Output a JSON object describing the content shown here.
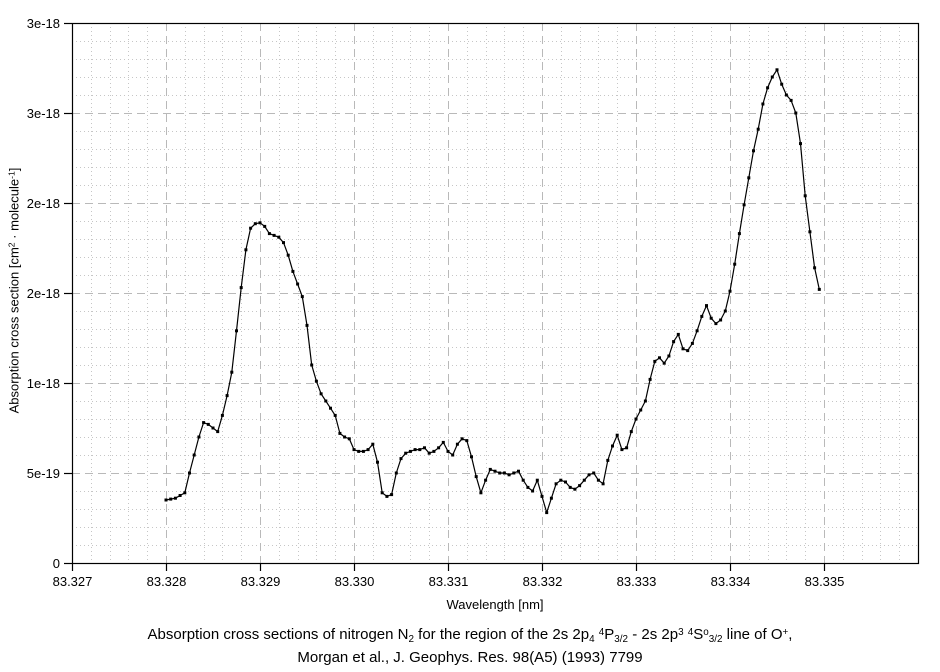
{
  "chart_data": {
    "type": "line",
    "title": "",
    "xlabel": "Wavelength [nm]",
    "ylabel_segments": [
      {
        "t": "Absorption cross section [cm"
      },
      {
        "t": "2",
        "s": "sup"
      },
      {
        "t": " · molecule"
      },
      {
        "t": "-1",
        "s": "sup"
      },
      {
        "t": "]"
      }
    ],
    "xlim": [
      83.327,
      83.336
    ],
    "ylim": [
      0,
      3e-18
    ],
    "x_major_step": 0.001,
    "x_minor_step": 0.0002,
    "y_major_step": 5e-19,
    "y_minor_step": 1e-19,
    "grid": "major-dashed, minor-dotted",
    "legend": "none",
    "marker": "small-black-square",
    "line_color": "#000000",
    "grid_minor_color": "#c6c6c6",
    "grid_major_color": "#b9b9b9",
    "x_ticks": [
      {
        "label": "83.327",
        "value": 83.327
      },
      {
        "label": "83.328",
        "value": 83.328
      },
      {
        "label": "83.329",
        "value": 83.329
      },
      {
        "label": "83.330",
        "value": 83.33
      },
      {
        "label": "83.331",
        "value": 83.331
      },
      {
        "label": "83.332",
        "value": 83.332
      },
      {
        "label": "83.333",
        "value": 83.333
      },
      {
        "label": "83.334",
        "value": 83.334
      },
      {
        "label": "83.335",
        "value": 83.335
      }
    ],
    "y_ticks": [
      {
        "label": "0",
        "value": 0
      },
      {
        "label": "5e-19",
        "value": 5e-19
      },
      {
        "label": "1e-18",
        "value": 1e-18
      },
      {
        "label": "2e-18",
        "value": 1.5e-18
      },
      {
        "label": "2e-18",
        "value": 2e-18
      },
      {
        "label": "3e-18",
        "value": 2.5e-18
      },
      {
        "label": "3e-18",
        "value": 3e-18
      }
    ],
    "series_name": "N2 absorption cross section",
    "x_start": 83.328,
    "x_step": 5e-05,
    "sigma_unit": "1e-19 cm2/molecule",
    "sigma_1e19": [
      3.5,
      3.55,
      3.6,
      3.75,
      3.9,
      5.0,
      6.0,
      7.0,
      7.8,
      7.7,
      7.5,
      7.3,
      8.2,
      9.3,
      10.6,
      12.9,
      15.3,
      17.4,
      18.6,
      18.85,
      18.9,
      18.7,
      18.3,
      18.2,
      18.1,
      17.8,
      17.1,
      16.2,
      15.5,
      14.8,
      13.2,
      11.0,
      10.1,
      9.4,
      9.0,
      8.6,
      8.2,
      7.2,
      7.0,
      6.9,
      6.3,
      6.2,
      6.2,
      6.3,
      6.6,
      5.6,
      3.9,
      3.7,
      3.8,
      5.0,
      5.8,
      6.1,
      6.2,
      6.3,
      6.3,
      6.4,
      6.1,
      6.2,
      6.4,
      6.7,
      6.2,
      6.0,
      6.6,
      6.9,
      6.8,
      5.9,
      4.8,
      3.9,
      4.6,
      5.2,
      5.1,
      5.0,
      5.0,
      4.9,
      5.0,
      5.1,
      4.6,
      4.2,
      4.0,
      4.6,
      3.7,
      2.8,
      3.6,
      4.4,
      4.6,
      4.5,
      4.2,
      4.1,
      4.3,
      4.6,
      4.9,
      5.0,
      4.6,
      4.4,
      5.7,
      6.5,
      7.1,
      6.3,
      6.4,
      7.3,
      8.0,
      8.5,
      9.0,
      10.2,
      11.2,
      11.4,
      11.1,
      11.5,
      12.3,
      12.7,
      11.9,
      11.8,
      12.2,
      12.9,
      13.7,
      14.3,
      13.6,
      13.3,
      13.5,
      14.0,
      15.1,
      16.6,
      18.3,
      19.9,
      21.4,
      22.9,
      24.1,
      25.5,
      26.4,
      27.0,
      27.4,
      26.6,
      26.0,
      25.7,
      25.0,
      23.3,
      20.4,
      18.4,
      16.4,
      15.2
    ]
  },
  "caption": {
    "line1_segments": [
      {
        "t": "Absorption cross sections of nitrogen N"
      },
      {
        "t": "2",
        "s": "sub"
      },
      {
        "t": " for the region of the 2s 2p"
      },
      {
        "t": "4",
        "s": "sub"
      },
      {
        "t": " "
      },
      {
        "t": "4",
        "s": "sup"
      },
      {
        "t": "P"
      },
      {
        "t": "3/2",
        "s": "sub"
      },
      {
        "t": " - 2s 2p"
      },
      {
        "t": "3",
        "s": "sup"
      },
      {
        "t": " "
      },
      {
        "t": "4",
        "s": "sup"
      },
      {
        "t": "S"
      },
      {
        "t": "o",
        "s": "sup"
      },
      {
        "t": "3/2",
        "s": "sub"
      },
      {
        "t": " line of O"
      },
      {
        "t": "+",
        "s": "sup"
      },
      {
        "t": ","
      }
    ],
    "line2": "Morgan et al., J. Geophys. Res. 98(A5) (1993) 7799"
  }
}
